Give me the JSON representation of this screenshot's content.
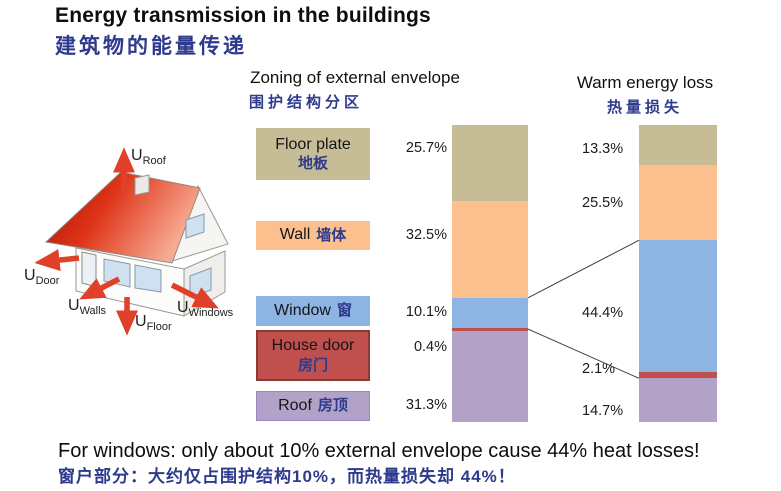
{
  "title": "Energy transmission in the buildings",
  "title_zh": "建筑物的能量传递",
  "headers": {
    "envelope_en": "Zoning of external envelope",
    "envelope_zh": "围护结构分区",
    "loss_en": "Warm energy loss",
    "loss_zh": "热量损失"
  },
  "house": {
    "labels": [
      {
        "base": "U",
        "sub": "Roof"
      },
      {
        "base": "U",
        "sub": "Door"
      },
      {
        "base": "U",
        "sub": "Walls"
      },
      {
        "base": "U",
        "sub": "Floor"
      },
      {
        "base": "U",
        "sub": "Windows"
      }
    ]
  },
  "legend": [
    {
      "en": "Floor plate",
      "zh": "地板",
      "color": "#c6bd96"
    },
    {
      "en": "Wall",
      "zh": "墙体",
      "color": "#fbc08d"
    },
    {
      "en": "Window",
      "zh": "窗",
      "color": "#8eb4e3"
    },
    {
      "en": "House door",
      "zh": "房门",
      "color": "#c0504d",
      "border": "#8c3a36"
    },
    {
      "en": "Roof",
      "zh": "房顶",
      "color": "#b2a2c7",
      "border": "#9c86bd"
    }
  ],
  "chart_data": {
    "type": "bar",
    "stacked": true,
    "orientation": "vertical",
    "unit": "%",
    "categories": [
      "Floor plate",
      "Wall",
      "Window",
      "House door",
      "Roof"
    ],
    "colors": [
      "#c6bd96",
      "#fbc08d",
      "#8eb4e3",
      "#c0504d",
      "#b2a2c7"
    ],
    "series": [
      {
        "name": "Zoning of external envelope",
        "values": [
          25.7,
          32.5,
          10.1,
          0.4,
          31.3
        ]
      },
      {
        "name": "Warm energy loss",
        "values": [
          13.3,
          25.5,
          44.4,
          2.1,
          14.7
        ]
      }
    ],
    "ylim": [
      0,
      100
    ],
    "legend_position": "left",
    "annotations": "lines connect window/door segment boundaries between the two bars"
  },
  "footer": {
    "en": "For windows: only about 10% external envelope cause 44% heat losses!",
    "zh": "窗户部分：大约仅占围护结构10%，而热量损失却 44%！"
  }
}
